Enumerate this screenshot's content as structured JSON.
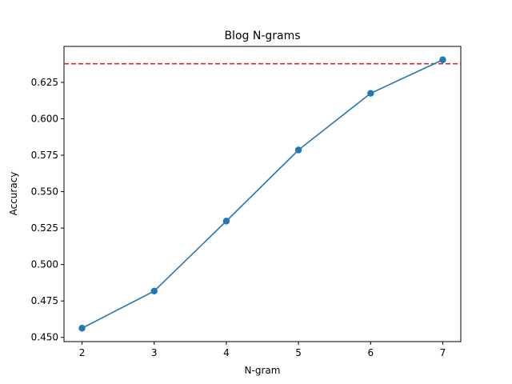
{
  "chart_data": {
    "type": "line",
    "title": "Blog N-grams",
    "xlabel": "N-gram",
    "ylabel": "Accuracy",
    "x": [
      2,
      3,
      4,
      5,
      6,
      7
    ],
    "series": [
      {
        "values": [
          0.4563,
          0.4818,
          0.5298,
          0.5786,
          0.6175,
          0.6405
        ],
        "color": "#1f77b4",
        "marker": "circle"
      }
    ],
    "reference_line": {
      "y": 0.6378,
      "color": "#d62728",
      "style": "dashed"
    },
    "xlim": [
      1.75,
      7.25
    ],
    "ylim": [
      0.4471,
      0.6497
    ],
    "x_ticks": [
      2,
      3,
      4,
      5,
      6,
      7
    ],
    "x_tick_labels": [
      "2",
      "3",
      "4",
      "5",
      "6",
      "7"
    ],
    "y_ticks": [
      0.45,
      0.475,
      0.5,
      0.525,
      0.55,
      0.575,
      0.6,
      0.625
    ],
    "y_tick_labels": [
      "0.450",
      "0.475",
      "0.500",
      "0.525",
      "0.550",
      "0.575",
      "0.600",
      "0.625"
    ],
    "grid": false,
    "legend": "none"
  }
}
